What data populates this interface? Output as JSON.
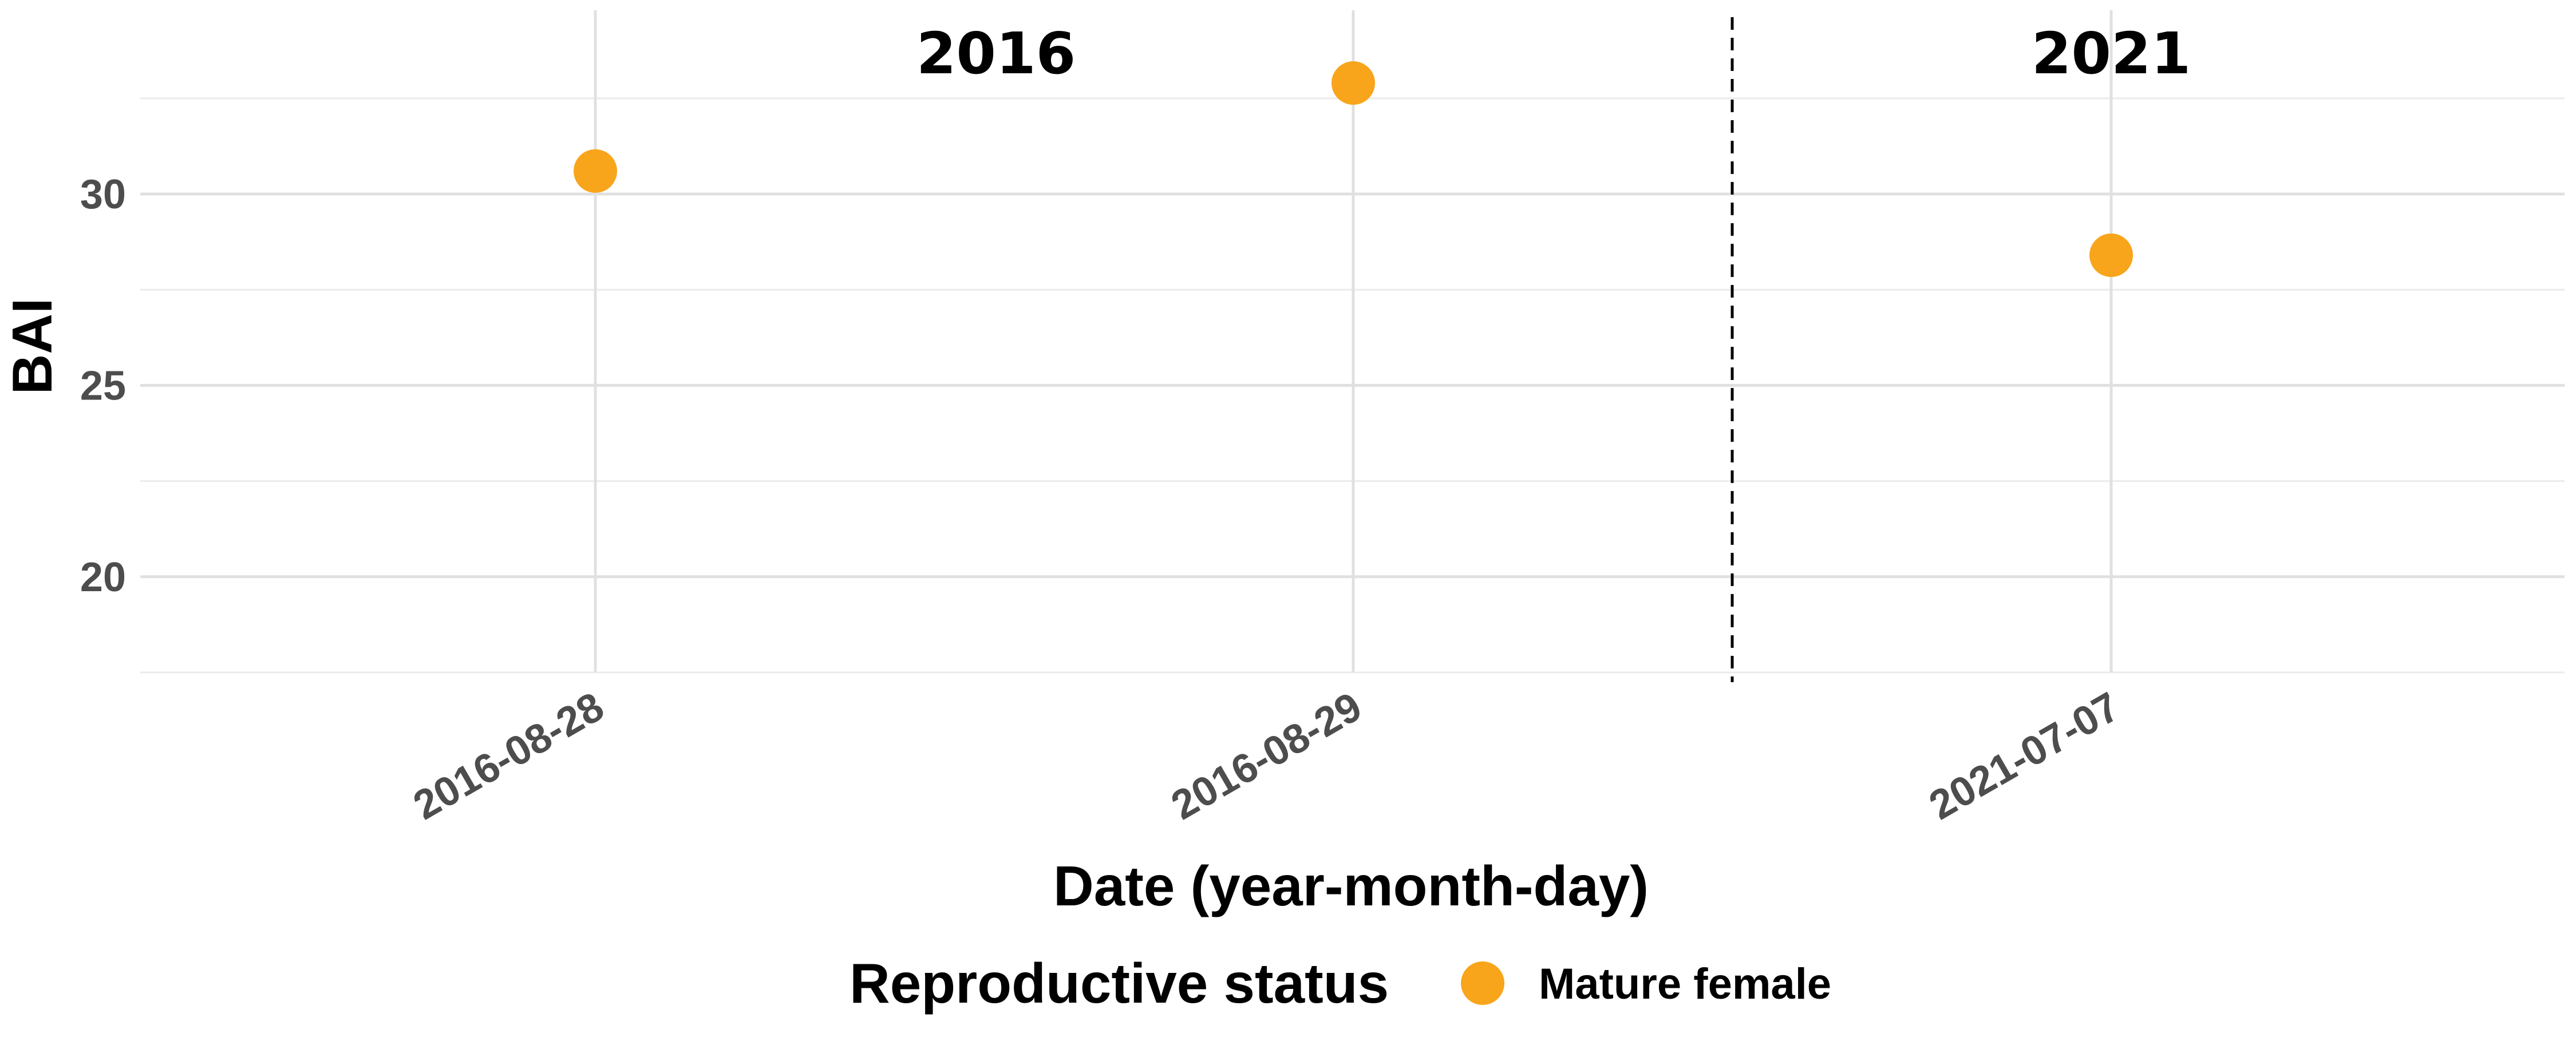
{
  "chart_data": {
    "type": "scatter",
    "ylabel": "BAI",
    "xlabel": "Date (year-month-day)",
    "x_categories": [
      "2016-08-28",
      "2016-08-29",
      "2021-07-07"
    ],
    "ylim": [
      17.5,
      34.8
    ],
    "yticks": [
      20,
      25,
      30
    ],
    "grid": true,
    "panel_labels": [
      "2016",
      "2021"
    ],
    "series": [
      {
        "name": "Mature female",
        "color": "#F8A51B",
        "points": [
          {
            "x": "2016-08-28",
            "y": 30.6
          },
          {
            "x": "2016-08-29",
            "y": 32.9
          },
          {
            "x": "2021-07-07",
            "y": 28.4
          }
        ]
      }
    ],
    "legend": {
      "title": "Reproductive status",
      "position": "bottom",
      "entries": [
        "Mature female"
      ]
    }
  }
}
